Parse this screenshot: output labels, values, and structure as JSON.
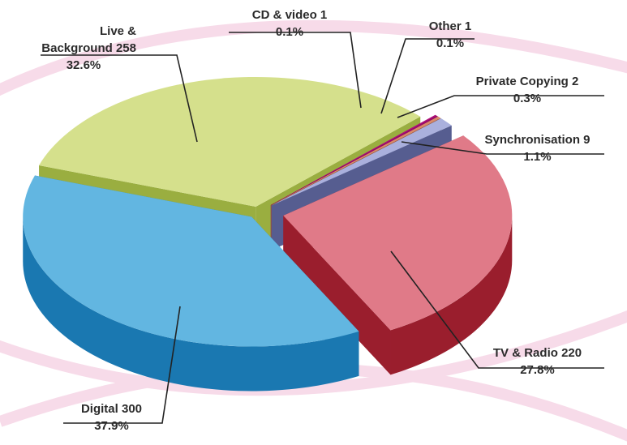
{
  "chart_data": {
    "type": "pie",
    "categories": [
      "CD & video",
      "Other",
      "Private Copying",
      "Synchronisation",
      "TV & Radio",
      "Digital",
      "Live & Background"
    ],
    "values": [
      1,
      1,
      2,
      9,
      220,
      300,
      258
    ],
    "shares": [
      0.1,
      0.1,
      0.3,
      1.1,
      27.8,
      37.9,
      32.6
    ],
    "share_labels": [
      "0.1%",
      "0.1%",
      "0.3%",
      "1.1%",
      "27.8%",
      "37.9%",
      "32.6%"
    ],
    "colors": [
      "#b3127d",
      "#9a0a6c",
      "#d98a6a",
      "#aab0dd",
      "#e07a88",
      "#62b6e1",
      "#d5e08c"
    ],
    "side_colors": [
      "#82085a",
      "#70064e",
      "#9c563a",
      "#565d90",
      "#9a1e2d",
      "#1a78b1",
      "#9aae40"
    ]
  }
}
